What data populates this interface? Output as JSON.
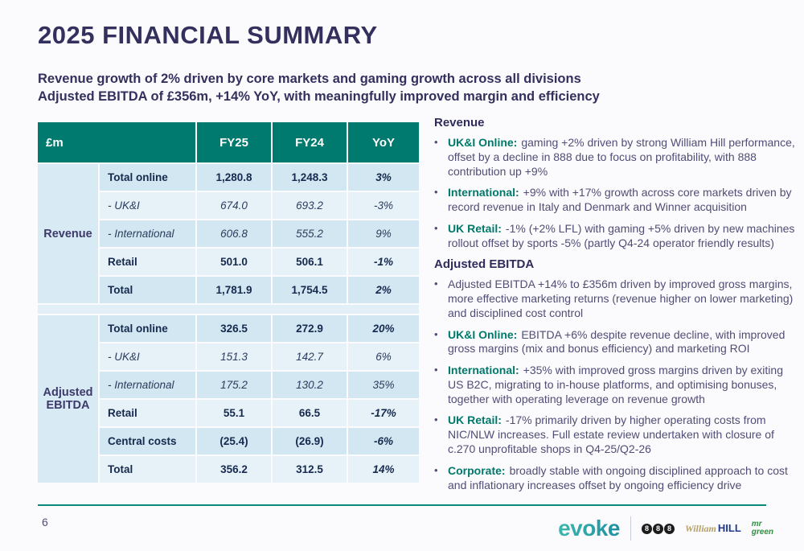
{
  "slide": {
    "title": "2025 FINANCIAL SUMMARY",
    "subtitle_line1": "Revenue growth of 2% driven by core markets and gaming growth across all divisions",
    "subtitle_line2": "Adjusted EBITDA of £356m, +14% YoY, with meaningfully improved margin and efficiency"
  },
  "colors": {
    "header_teal": "#00796E",
    "title_navy": "#33305E",
    "lead_teal": "#00796B",
    "row_dark_blue": "#D2E7F1",
    "row_light_blue": "#E7F1F8",
    "section_label_blue": "#D8EAF3",
    "number_navy": "#152A4E",
    "footer_line_teal": "#0B8A7A"
  },
  "table": {
    "unit_label": "£m",
    "columns": [
      "FY25",
      "FY24",
      "YoY"
    ],
    "sections": [
      {
        "label": "Revenue",
        "rows": [
          {
            "label": "Total online",
            "fy25": "1,280.8",
            "fy24": "1,248.3",
            "yoy": "3%"
          },
          {
            "label": "- UK&I",
            "fy25": "674.0",
            "fy24": "693.2",
            "yoy": "-3%"
          },
          {
            "label": "- International",
            "fy25": "606.8",
            "fy24": "555.2",
            "yoy": "9%"
          },
          {
            "label": "Retail",
            "fy25": "501.0",
            "fy24": "506.1",
            "yoy": "-1%"
          },
          {
            "label": "Total",
            "fy25": "1,781.9",
            "fy24": "1,754.5",
            "yoy": "2%"
          }
        ]
      },
      {
        "label": "Adjusted EBITDA",
        "rows": [
          {
            "label": "Total online",
            "fy25": "326.5",
            "fy24": "272.9",
            "yoy": "20%"
          },
          {
            "label": "- UK&I",
            "fy25": "151.3",
            "fy24": "142.7",
            "yoy": "6%"
          },
          {
            "label": "- International",
            "fy25": "175.2",
            "fy24": "130.2",
            "yoy": "35%"
          },
          {
            "label": "Retail",
            "fy25": "55.1",
            "fy24": "66.5",
            "yoy": "-17%"
          },
          {
            "label": "Central costs",
            "fy25": "(25.4)",
            "fy24": "(26.9)",
            "yoy": "-6%"
          },
          {
            "label": "Total",
            "fy25": "356.2",
            "fy24": "312.5",
            "yoy": "14%"
          }
        ]
      }
    ]
  },
  "commentary": {
    "revenue_heading": "Revenue",
    "ebitda_heading": "Adjusted EBITDA",
    "revenue_bullets": [
      {
        "lead": "UK&I Online:",
        "text": "gaming +2% driven by strong William Hill performance, offset by a decline in 888 due to focus on profitability, with 888 contribution up +9%"
      },
      {
        "lead": "International:",
        "text": "+9% with +17% growth across core markets driven by record revenue in Italy and Denmark and Winner acquisition"
      },
      {
        "lead": "UK Retail:",
        "text": "-1% (+2% LFL) with gaming +5% driven by new machines rollout offset by sports -5% (partly Q4-24 operator friendly results)"
      }
    ],
    "ebitda_bullets": [
      {
        "lead": "",
        "text": "Adjusted EBITDA +14% to £356m driven by improved gross margins, more effective marketing returns (revenue higher on lower marketing) and disciplined cost control"
      },
      {
        "lead": "UK&I Online:",
        "text": "EBITDA +6% despite revenue decline, with improved gross margins (mix and bonus efficiency) and marketing ROI"
      },
      {
        "lead": "International:",
        "text": "+35% with improved gross margins driven by exiting US B2C, migrating to in-house platforms, and optimising bonuses, together with operating leverage on revenue growth"
      },
      {
        "lead": "UK Retail:",
        "text": "-17% primarily driven by higher operating costs from NIC/NLW increases. Full estate review undertaken with closure of c.270 unprofitable shops in Q4-25/Q2-26"
      },
      {
        "lead": "Corporate:",
        "text": "broadly stable with ongoing disciplined approach to cost and inflationary increases offset by ongoing efficiency drive"
      }
    ],
    "bullet_glyph": "•"
  },
  "footer": {
    "page_number": "6",
    "logos": {
      "evoke": "evoke",
      "eight_digits": [
        "8",
        "8",
        "8"
      ],
      "william": "William",
      "hill": "HILL",
      "mr": "mr",
      "green": "green"
    }
  }
}
